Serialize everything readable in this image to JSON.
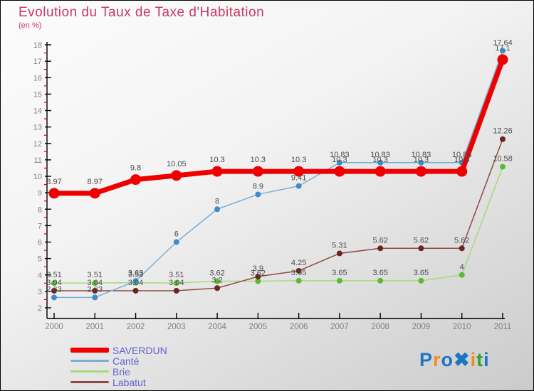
{
  "header": {
    "title": "Evolution du Taux de Taxe d'Habitation",
    "subtitle": "(en %)",
    "color": "#c73b62"
  },
  "chart_data": {
    "type": "line",
    "title": "Evolution du Taux de Taxe d'Habitation",
    "subtitle": "(en %)",
    "x": [
      2000,
      2001,
      2002,
      2003,
      2004,
      2005,
      2006,
      2007,
      2008,
      2009,
      2010,
      2011
    ],
    "ylim": [
      2,
      18
    ],
    "y_major_step": 1,
    "y_minor_step": 0.5,
    "grid": false,
    "legend_position": "bottom-left",
    "axis_color": "#000000",
    "minor_tick_color": "#cc0000",
    "tick_label_color": "#808080",
    "point_label_color": "#4d4d4d",
    "series": [
      {
        "name": "SAVERDUN",
        "color": "#ee0000",
        "dot_color": "#ee0000",
        "line_width": 7,
        "dot_radius": 7.5,
        "label_offset": 13,
        "values": [
          8.97,
          8.97,
          9.8,
          10.05,
          10.3,
          10.3,
          10.3,
          10.3,
          10.3,
          10.3,
          10.3,
          17.1
        ]
      },
      {
        "name": "Canté",
        "color": "#7aaed6",
        "dot_color": "#3e8ccb",
        "line_width": 1.5,
        "dot_radius": 4,
        "label_offset": 8,
        "values": [
          2.63,
          2.63,
          3.63,
          6,
          8,
          8.9,
          9.41,
          10.83,
          10.83,
          10.83,
          10.83,
          17.64
        ]
      },
      {
        "name": "Brie",
        "color": "#a8d97a",
        "dot_color": "#59bb33",
        "line_width": 1.5,
        "dot_radius": 4,
        "label_offset": 8,
        "values": [
          3.51,
          3.51,
          3.53,
          3.51,
          3.62,
          3.62,
          3.65,
          3.65,
          3.65,
          3.65,
          4,
          10.58
        ]
      },
      {
        "name": "Labatut",
        "color": "#8e4a42",
        "dot_color": "#69251f",
        "line_width": 1.5,
        "dot_radius": 4,
        "label_offset": 8,
        "values": [
          3.04,
          3.04,
          3.04,
          3.04,
          3.2,
          3.9,
          4.25,
          5.31,
          5.62,
          5.62,
          5.62,
          12.26
        ]
      }
    ]
  },
  "legend": {
    "text_color": "#6363cf"
  },
  "logo": {
    "letters": [
      {
        "ch": "P",
        "color": "#1c76c6"
      },
      {
        "ch": "r",
        "color": "#f68b1e"
      },
      {
        "ch": "o",
        "color": "#1c76c6"
      },
      {
        "ch": "✖",
        "color": "#1c76c6"
      },
      {
        "ch": "i",
        "color": "#f68b1e"
      },
      {
        "ch": "t",
        "color": "#31a32e"
      },
      {
        "ch": "i",
        "color": "#1c76c6"
      }
    ]
  }
}
